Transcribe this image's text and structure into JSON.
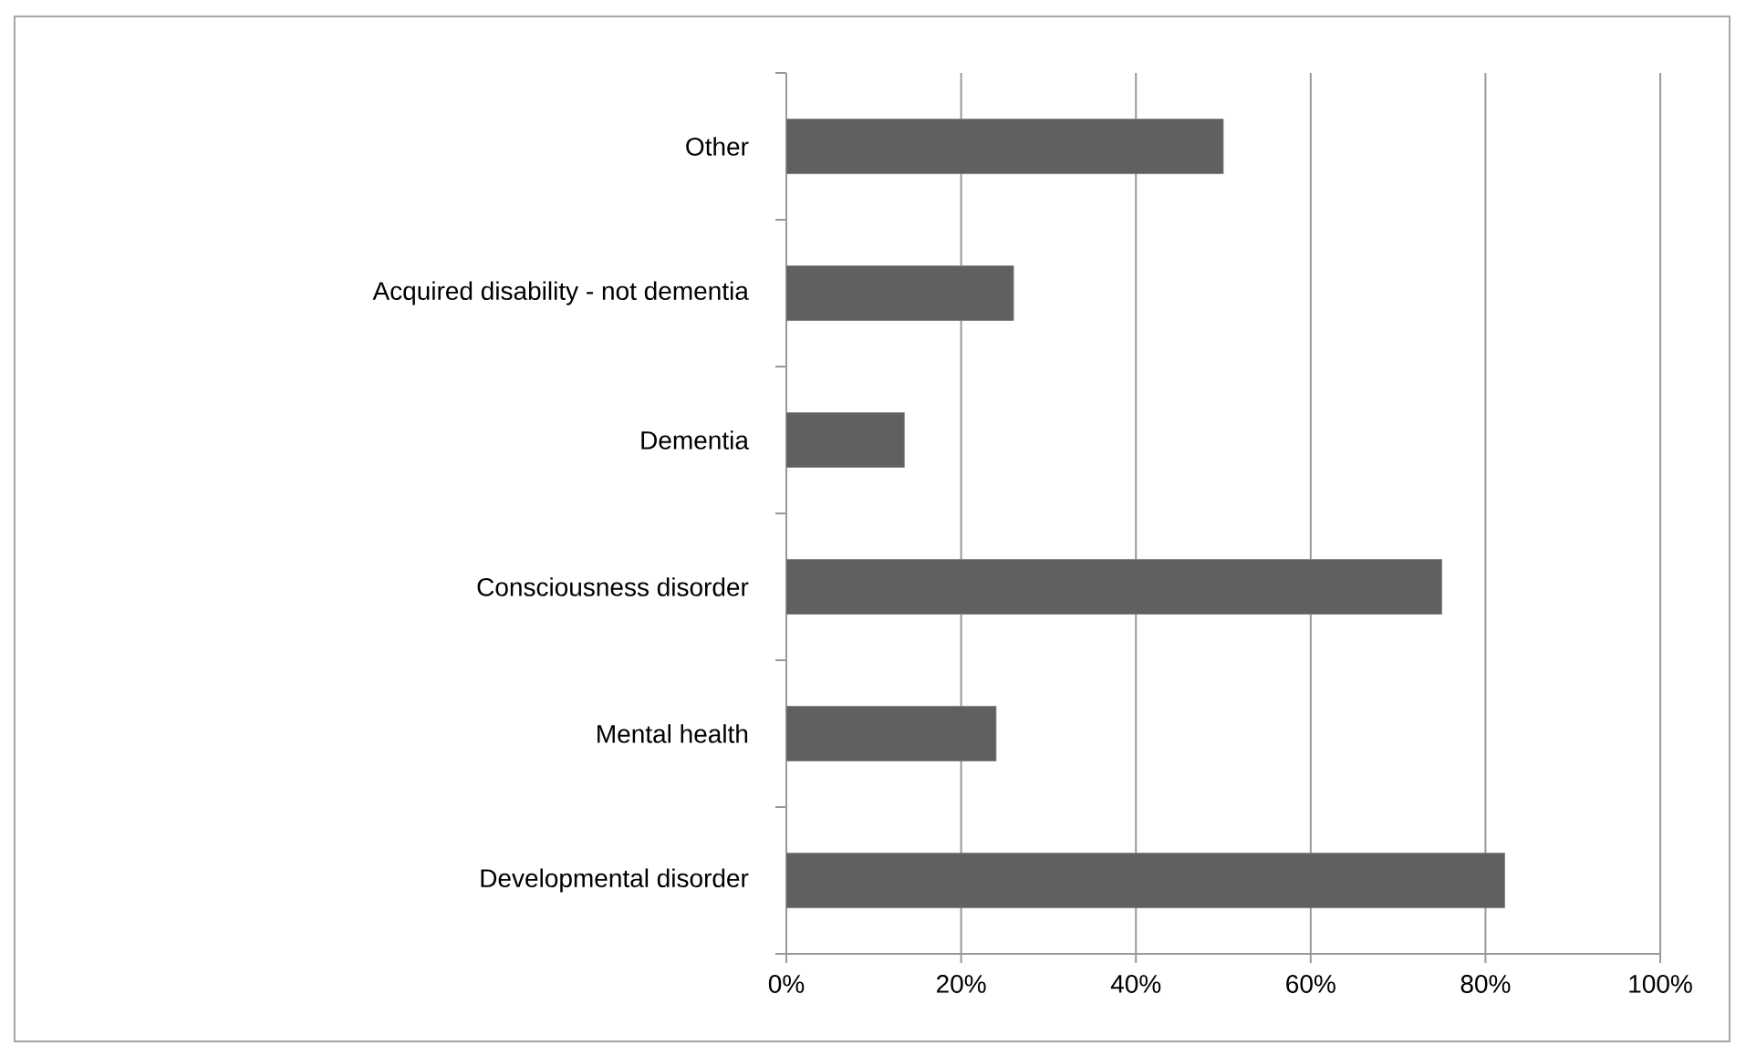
{
  "chart_data": {
    "type": "bar",
    "orientation": "horizontal",
    "categories": [
      "Other",
      "Acquired disability - not dementia",
      "Dementia",
      "Consciousness disorder",
      "Mental health",
      "Developmental disorder"
    ],
    "values": [
      50,
      26,
      13.5,
      75,
      24,
      82.2
    ],
    "color": "#606060",
    "xlim": [
      0,
      100
    ],
    "xticks": [
      {
        "value": 0,
        "label": "0%"
      },
      {
        "value": 20,
        "label": "20%"
      },
      {
        "value": 40,
        "label": "40%"
      },
      {
        "value": 60,
        "label": "60%"
      },
      {
        "value": 80,
        "label": "80%"
      },
      {
        "value": 100,
        "label": "100%"
      }
    ],
    "grid": "x"
  }
}
